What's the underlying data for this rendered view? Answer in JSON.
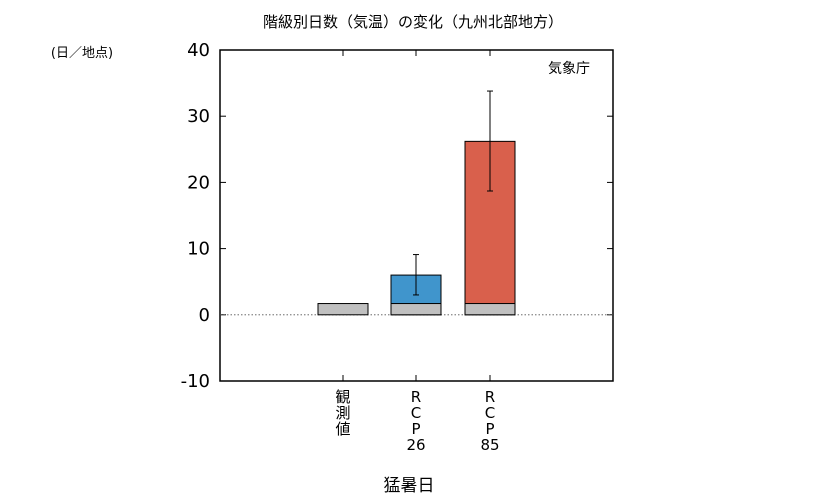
{
  "chart_data": {
    "type": "bar",
    "title": "階級別日数（気温）の変化（九州北部地方）",
    "unit_label": "(日／地点)",
    "source_label": "気象庁",
    "xlabel": "猛暑日",
    "ylim": [
      -10,
      40
    ],
    "yticks": [
      -10,
      0,
      10,
      20,
      30,
      40
    ],
    "zero_line": "dotted",
    "categories": [
      {
        "label_lines": [
          "観",
          "測",
          "値"
        ]
      },
      {
        "label_lines": [
          "R",
          "C",
          "P",
          "26"
        ]
      },
      {
        "label_lines": [
          "R",
          "C",
          "P",
          "85"
        ]
      }
    ],
    "series": [
      {
        "role": "observed_baseline",
        "color": "#c0c0c0",
        "values": [
          1.7,
          1.7,
          1.7
        ]
      },
      {
        "role": "projection",
        "values": [
          null,
          6.0,
          26.2
        ],
        "colors": [
          null,
          "#4095cc",
          "#d9604c"
        ],
        "error_low": [
          null,
          3.0,
          18.7
        ],
        "error_high": [
          null,
          9.1,
          33.8
        ]
      }
    ]
  }
}
